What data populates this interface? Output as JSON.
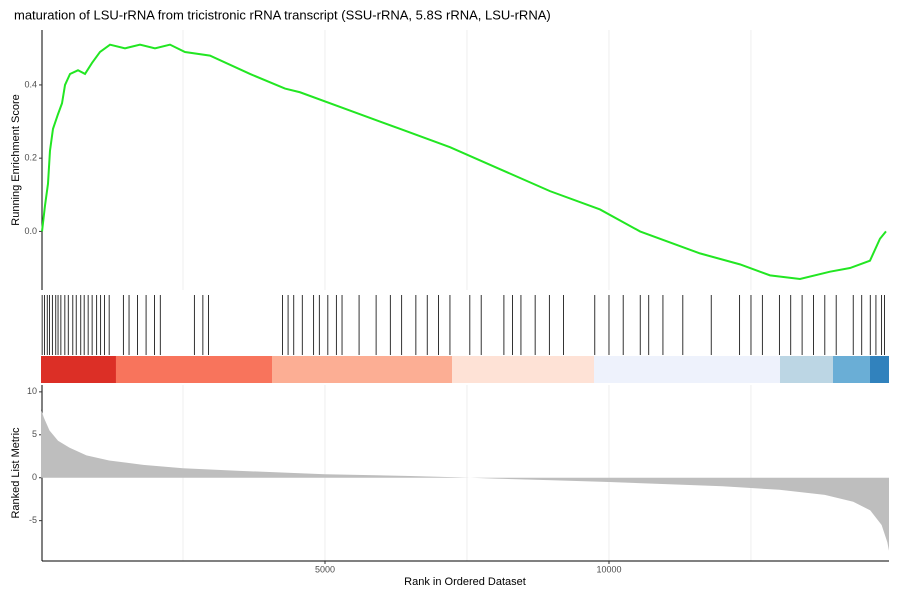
{
  "chart_data": [
    {
      "type": "line",
      "title": "maturation of LSU-rRNA from tricistronic rRNA transcript (SSU-rRNA, 5.8S rRNA, LSU-rRNA)",
      "ylabel": "Running Enrichment Score",
      "x": [
        18,
        70,
        123,
        158,
        211,
        299,
        370,
        423,
        511,
        651,
        775,
        898,
        1039,
        1215,
        1479,
        1743,
        2007,
        2271,
        2535,
        2975,
        3680,
        4296,
        4560,
        5440,
        6320,
        7201,
        8081,
        8961,
        9842,
        10546,
        11602,
        12306,
        12835,
        13363,
        13891,
        14243,
        14595,
        14771,
        14877
      ],
      "values": [
        0.0,
        0.07,
        0.13,
        0.22,
        0.28,
        0.32,
        0.35,
        0.4,
        0.43,
        0.44,
        0.43,
        0.46,
        0.49,
        0.51,
        0.5,
        0.51,
        0.5,
        0.51,
        0.49,
        0.48,
        0.43,
        0.39,
        0.38,
        0.33,
        0.28,
        0.23,
        0.17,
        0.11,
        0.06,
        0.0,
        -0.06,
        -0.09,
        -0.12,
        -0.13,
        -0.11,
        -0.1,
        -0.08,
        -0.02,
        0.0
      ],
      "color": "#22e622",
      "xlim": [
        0,
        14930
      ],
      "ylim": [
        -0.16,
        0.55
      ],
      "yticks": [
        {
          "value": 0,
          "label": "0.0"
        },
        0.2,
        0.4
      ],
      "xgrid": [
        2500,
        5000,
        7500,
        10000,
        12500
      ]
    },
    {
      "type": "rug",
      "x": [
        20,
        60,
        110,
        150,
        200,
        260,
        300,
        350,
        420,
        480,
        560,
        620,
        700,
        760,
        830,
        900,
        980,
        1050,
        1120,
        1200,
        1450,
        1550,
        1700,
        1850,
        2000,
        2100,
        2700,
        2850,
        2950,
        4250,
        4350,
        4450,
        4600,
        4800,
        4900,
        5050,
        5200,
        5300,
        5600,
        5900,
        6150,
        6350,
        6600,
        6800,
        7000,
        7200,
        7550,
        7750,
        8150,
        8300,
        8450,
        8700,
        8950,
        9200,
        9750,
        10000,
        10250,
        10550,
        10700,
        10950,
        11300,
        11800,
        12300,
        12500,
        12700,
        13000,
        13200,
        13400,
        13600,
        13800,
        14000,
        14300,
        14450,
        14600,
        14700,
        14800,
        14850
      ],
      "color": "#000000",
      "band_edges": [
        0,
        1320,
        4067,
        7236,
        9736,
        13011,
        13944,
        14595,
        14930
      ],
      "band_colors": [
        "#dc2f26",
        "#f8745c",
        "#fcae94",
        "#fee2d6",
        "#eef2fc",
        "#bcd6e4",
        "#6aaed6",
        "#3182bd"
      ],
      "xlim": [
        0,
        14930
      ]
    },
    {
      "type": "area",
      "xlabel": "Rank in Ordered Dataset",
      "ylabel": "Ranked List Metric",
      "x": [
        0,
        50,
        150,
        300,
        500,
        800,
        1200,
        1800,
        2500,
        3500,
        5000,
        6500,
        7300,
        8000,
        9000,
        10000,
        11000,
        12000,
        13000,
        13800,
        14300,
        14600,
        14800,
        14900,
        14930
      ],
      "values": [
        8,
        7,
        5.5,
        4.3,
        3.5,
        2.6,
        2.0,
        1.5,
        1.1,
        0.8,
        0.4,
        0.2,
        0.05,
        -0.1,
        -0.3,
        -0.5,
        -0.75,
        -1.0,
        -1.4,
        -2.0,
        -2.8,
        -3.8,
        -5.5,
        -7.5,
        -8.5
      ],
      "color": "#bebebe",
      "xlim": [
        0,
        14930
      ],
      "ylim": [
        -9.7,
        10.8
      ],
      "yticks": [
        10,
        5,
        0,
        -5
      ],
      "xticks": [
        5000,
        10000
      ],
      "xgrid": [
        2500,
        5000,
        7500,
        10000,
        12500
      ]
    }
  ]
}
